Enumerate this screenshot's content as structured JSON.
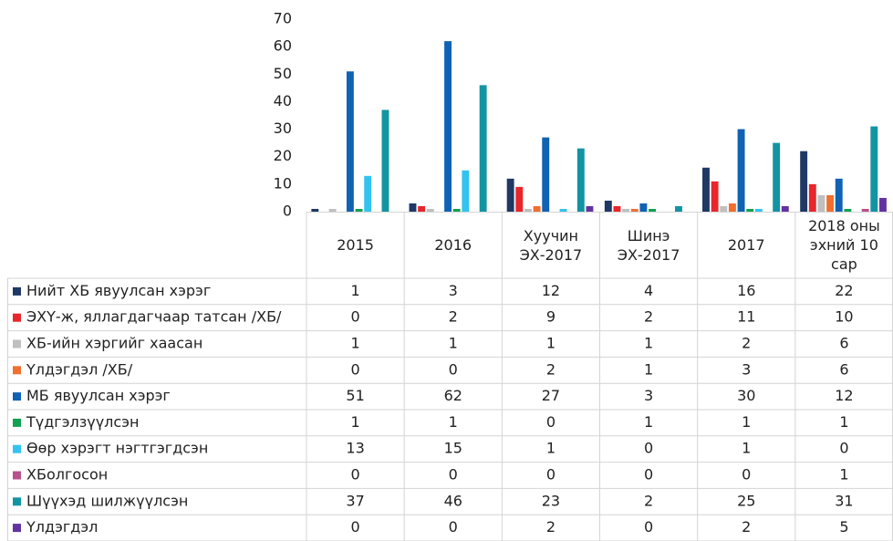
{
  "chart_data": {
    "type": "bar",
    "categories": [
      "2015",
      "2016",
      "Хуучин ЭХ-2017",
      "Шинэ ЭХ-2017",
      "2017",
      "2018 оны эхний 10 сар"
    ],
    "ylim": [
      0,
      70
    ],
    "yticks": [
      0,
      10,
      20,
      30,
      40,
      50,
      60,
      70
    ],
    "grid": false,
    "data_table": true,
    "series": [
      {
        "name": "Нийт ХБ явуулсан хэрэг",
        "color": "#1f3864",
        "values": [
          1,
          3,
          12,
          4,
          16,
          22
        ]
      },
      {
        "name": "ЭХҮ-ж, яллагдагчаар татсан /ХБ/",
        "color": "#e8262b",
        "values": [
          0,
          2,
          9,
          2,
          11,
          10
        ]
      },
      {
        "name": "ХБ-ийн хэргийг хаасан",
        "color": "#bfbfbf",
        "values": [
          1,
          1,
          1,
          1,
          2,
          6
        ]
      },
      {
        "name": "Үлдэгдэл /ХБ/",
        "color": "#f07030",
        "values": [
          0,
          0,
          2,
          1,
          3,
          6
        ]
      },
      {
        "name": "МБ явуулсан хэрэг",
        "color": "#1062b4",
        "values": [
          51,
          62,
          27,
          3,
          30,
          12
        ]
      },
      {
        "name": "Түдгэлзүүлсэн",
        "color": "#12a150",
        "values": [
          1,
          1,
          0,
          1,
          1,
          1
        ]
      },
      {
        "name": "Өөр хэрэгт нэгтгэгдсэн",
        "color": "#33c3f0",
        "values": [
          13,
          15,
          1,
          0,
          1,
          0
        ]
      },
      {
        "name": "ХБолгосон",
        "color": "#b8508a",
        "values": [
          0,
          0,
          0,
          0,
          0,
          1
        ]
      },
      {
        "name": "Шүүхэд шилжүүлсэн",
        "color": "#1394a3",
        "values": [
          37,
          46,
          23,
          2,
          25,
          31
        ]
      },
      {
        "name": "Үлдэгдэл",
        "color": "#6333a0",
        "values": [
          0,
          0,
          2,
          0,
          2,
          5
        ]
      }
    ]
  }
}
